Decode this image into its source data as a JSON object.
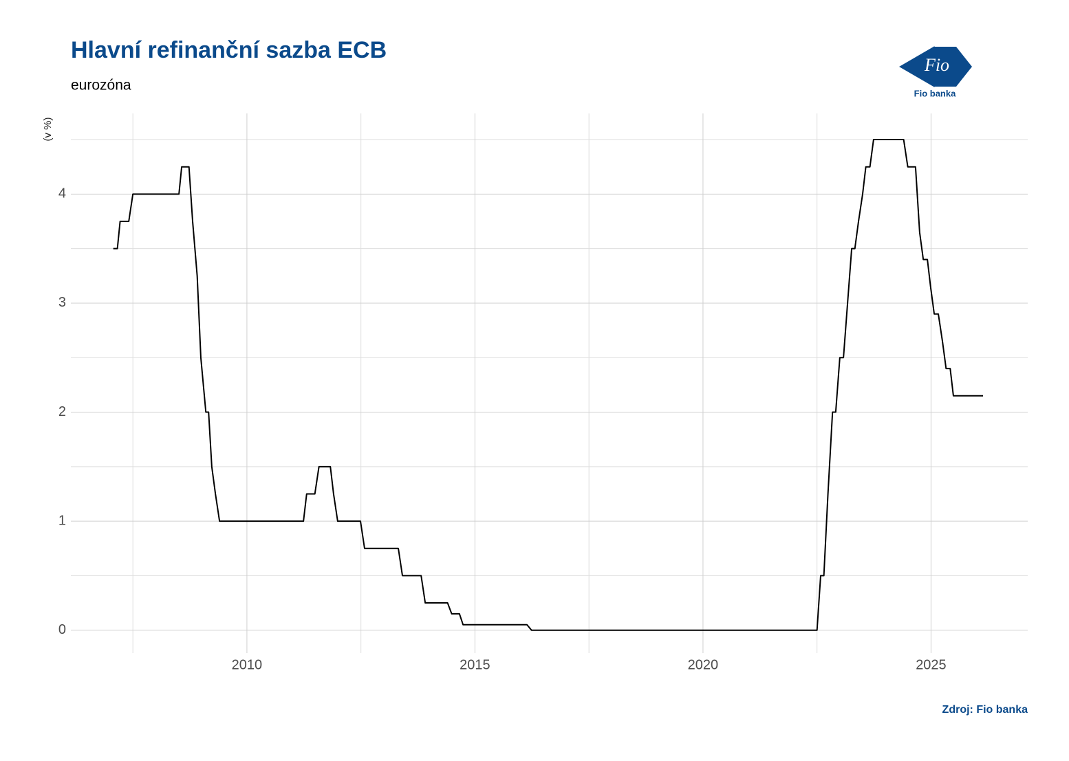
{
  "chart_data": {
    "type": "line",
    "title": "Hlavní refinanční sazba ECB",
    "subtitle": "eurozóna",
    "y_label": "(v %)",
    "source": "Zdroj: Fio banka",
    "x": [
      2007.07,
      2007.16,
      2007.22,
      2007.41,
      2007.5,
      2008.51,
      2008.57,
      2008.73,
      2008.81,
      2008.91,
      2008.99,
      2009.1,
      2009.16,
      2009.23,
      2009.31,
      2009.4,
      2011.24,
      2011.31,
      2011.49,
      2011.58,
      2011.83,
      2011.9,
      2011.99,
      2012.49,
      2012.58,
      2013.32,
      2013.41,
      2013.82,
      2013.91,
      2014.4,
      2014.49,
      2014.66,
      2014.74,
      2016.14,
      2016.24,
      2022.5,
      2022.58,
      2022.65,
      2022.74,
      2022.84,
      2022.91,
      2023.0,
      2023.08,
      2023.17,
      2023.26,
      2023.33,
      2023.41,
      2023.5,
      2023.57,
      2023.66,
      2023.74,
      2024.4,
      2024.49,
      2024.66,
      2024.75,
      2024.83,
      2024.92,
      2024.99,
      2025.07,
      2025.16,
      2025.25,
      2025.33,
      2025.42,
      2025.49,
      2026.14
    ],
    "series": [
      {
        "color": "#000000",
        "values": [
          3.5,
          3.5,
          3.75,
          3.75,
          4.0,
          4.0,
          4.25,
          4.25,
          3.75,
          3.25,
          2.5,
          2.0,
          2.0,
          1.5,
          1.25,
          1.0,
          1.0,
          1.25,
          1.25,
          1.5,
          1.5,
          1.25,
          1.0,
          1.0,
          0.75,
          0.75,
          0.5,
          0.5,
          0.25,
          0.25,
          0.15,
          0.15,
          0.05,
          0.05,
          0,
          0,
          0.5,
          0.5,
          1.25,
          2.0,
          2.0,
          2.5,
          2.5,
          3.0,
          3.5,
          3.5,
          3.75,
          4.0,
          4.25,
          4.25,
          4.5,
          4.5,
          4.25,
          4.25,
          3.65,
          3.4,
          3.4,
          3.15,
          2.9,
          2.9,
          2.65,
          2.4,
          2.4,
          2.15,
          2.15
        ]
      }
    ],
    "xlim": [
      2006.14,
      2027.12
    ],
    "ylim": [
      -0.21,
      4.74
    ],
    "xticks": [
      2010,
      2015,
      2020,
      2025
    ],
    "yticks": [
      0,
      1,
      2,
      3,
      4
    ],
    "minor_xticks": [
      2007.5,
      2012.5,
      2017.5,
      2022.5
    ],
    "minor_yticks": [
      0.5,
      1.5,
      2.5,
      3.5,
      4.5
    ],
    "grid": true
  },
  "logo": {
    "mark": "Fio",
    "caption": "Fio banka"
  }
}
